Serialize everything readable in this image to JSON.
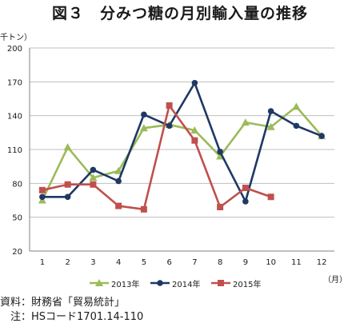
{
  "title": "図３　分みつ糖の月別輸入量の推移",
  "notes": {
    "source": "資料：財務省「貿易統計」",
    "note": "　注：HSコード1701.14-110"
  },
  "chart_data": {
    "type": "line",
    "title": "図３　分みつ糖の月別輸入量の推移",
    "ylabel": "千トン）",
    "xlabel": "（月）",
    "categories": [
      "1",
      "2",
      "3",
      "4",
      "5",
      "6",
      "7",
      "8",
      "9",
      "10",
      "11",
      "12"
    ],
    "yticks": [
      "20",
      "50",
      "80",
      "110",
      "140",
      "170",
      "200"
    ],
    "ylim": [
      20,
      200
    ],
    "grid": true,
    "legend": "bottom",
    "series": [
      {
        "name": "2013年",
        "color": "#9bbb59",
        "marker": "triangle",
        "values": [
          65,
          112,
          85,
          91,
          129,
          132,
          127,
          104,
          134,
          130,
          148,
          122
        ]
      },
      {
        "name": "2014年",
        "color": "#1f3864",
        "marker": "circle",
        "values": [
          68,
          68,
          92,
          82,
          141,
          131,
          169,
          108,
          64,
          144,
          131,
          122
        ]
      },
      {
        "name": "2015年",
        "color": "#c0504d",
        "marker": "square",
        "values": [
          74,
          79,
          79,
          60,
          57,
          149,
          118,
          59,
          76,
          68,
          null,
          null
        ]
      }
    ]
  }
}
